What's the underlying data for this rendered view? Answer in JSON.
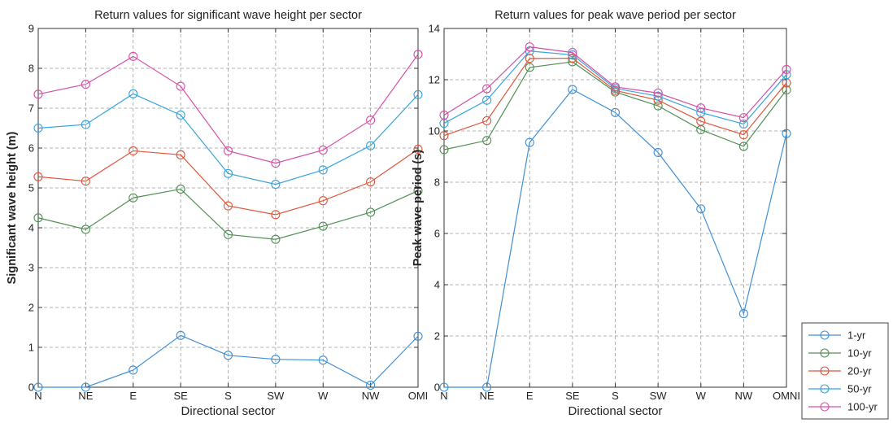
{
  "chart_data": [
    {
      "type": "line",
      "title": "Return values for significant wave height per sector",
      "xlabel": "Directional sector",
      "ylabel": "Significant wave height (m)",
      "categories": [
        "N",
        "NE",
        "E",
        "SE",
        "S",
        "SW",
        "W",
        "NW",
        "OMNI"
      ],
      "category_labels": [
        "N",
        "NE",
        "E",
        "SE",
        "S",
        "SW",
        "W",
        "NW",
        "OMI"
      ],
      "ylim": [
        0,
        9
      ],
      "yticks": [
        0,
        1,
        2,
        3,
        4,
        5,
        6,
        7,
        8,
        9
      ],
      "grid": true,
      "series": [
        {
          "name": "1-yr",
          "color": "#3f8fd6",
          "values": [
            0,
            0,
            0.43,
            1.3,
            0.8,
            0.7,
            0.68,
            0.05,
            1.28
          ]
        },
        {
          "name": "10-yr",
          "color": "#4f8f52",
          "values": [
            4.25,
            3.96,
            4.75,
            4.97,
            3.83,
            3.71,
            4.04,
            4.39,
            4.93
          ]
        },
        {
          "name": "20-yr",
          "color": "#e0553a",
          "values": [
            5.28,
            5.17,
            5.93,
            5.83,
            4.55,
            4.33,
            4.68,
            5.15,
            5.97
          ]
        },
        {
          "name": "50-yr",
          "color": "#36a3dc",
          "values": [
            6.5,
            6.59,
            7.36,
            6.83,
            5.36,
            5.09,
            5.45,
            6.06,
            7.34
          ]
        },
        {
          "name": "100-yr",
          "color": "#d64fa6",
          "values": [
            7.35,
            7.6,
            8.3,
            7.55,
            5.93,
            5.62,
            5.95,
            6.7,
            8.35
          ]
        }
      ]
    },
    {
      "type": "line",
      "title": "Return values for peak wave period per sector",
      "xlabel": "Directional sector",
      "ylabel": "Peak wave period (s)",
      "categories": [
        "N",
        "NE",
        "E",
        "SE",
        "S",
        "SW",
        "W",
        "NW",
        "OMNI"
      ],
      "category_labels": [
        "N",
        "NE",
        "E",
        "SE",
        "S",
        "SW",
        "W",
        "NW",
        "OMNI"
      ],
      "ylim": [
        0,
        14
      ],
      "yticks": [
        0,
        2,
        4,
        6,
        8,
        10,
        12,
        14
      ],
      "grid": true,
      "legend": "outside-right",
      "series": [
        {
          "name": "1-yr",
          "color": "#3f8fd6",
          "values": [
            0,
            0,
            9.55,
            11.62,
            10.72,
            9.16,
            6.96,
            2.87,
            9.9
          ]
        },
        {
          "name": "10-yr",
          "color": "#4f8f52",
          "values": [
            9.27,
            9.63,
            12.48,
            12.7,
            11.52,
            10.98,
            10.05,
            9.4,
            11.6
          ]
        },
        {
          "name": "20-yr",
          "color": "#e0553a",
          "values": [
            9.82,
            10.4,
            12.83,
            12.84,
            11.58,
            11.2,
            10.38,
            9.85,
            11.88
          ]
        },
        {
          "name": "50-yr",
          "color": "#36a3dc",
          "values": [
            10.3,
            11.2,
            13.12,
            12.97,
            11.66,
            11.36,
            10.72,
            10.27,
            12.2
          ]
        },
        {
          "name": "100-yr",
          "color": "#d64fa6",
          "values": [
            10.62,
            11.65,
            13.28,
            13.06,
            11.72,
            11.48,
            10.9,
            10.52,
            12.4
          ]
        }
      ]
    }
  ]
}
